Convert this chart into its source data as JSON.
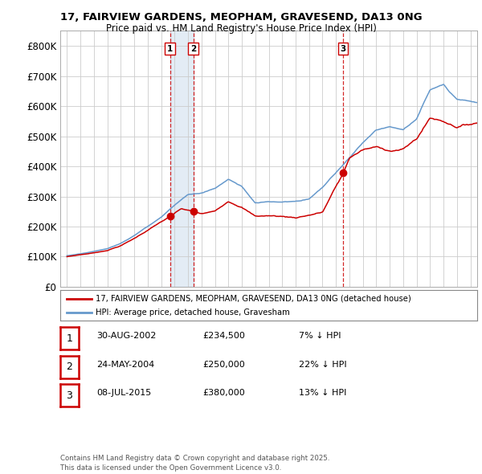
{
  "title_line1": "17, FAIRVIEW GARDENS, MEOPHAM, GRAVESEND, DA13 0NG",
  "title_line2": "Price paid vs. HM Land Registry's House Price Index (HPI)",
  "ylabel_ticks": [
    "£0",
    "£100K",
    "£200K",
    "£300K",
    "£400K",
    "£500K",
    "£600K",
    "£700K",
    "£800K"
  ],
  "ytick_values": [
    0,
    100000,
    200000,
    300000,
    400000,
    500000,
    600000,
    700000,
    800000
  ],
  "ylim": [
    0,
    850000
  ],
  "xlim_start": 1994.5,
  "xlim_end": 2025.5,
  "sale_dates": [
    2002.664,
    2004.389,
    2015.519
  ],
  "sale_prices": [
    234500,
    250000,
    380000
  ],
  "sale_labels": [
    "1",
    "2",
    "3"
  ],
  "legend_label_red": "17, FAIRVIEW GARDENS, MEOPHAM, GRAVESEND, DA13 0NG (detached house)",
  "legend_label_blue": "HPI: Average price, detached house, Gravesham",
  "table_rows": [
    {
      "num": "1",
      "date": "30-AUG-2002",
      "price": "£234,500",
      "pct": "7% ↓ HPI"
    },
    {
      "num": "2",
      "date": "24-MAY-2004",
      "price": "£250,000",
      "pct": "22% ↓ HPI"
    },
    {
      "num": "3",
      "date": "08-JUL-2015",
      "price": "£380,000",
      "pct": "13% ↓ HPI"
    }
  ],
  "footer": "Contains HM Land Registry data © Crown copyright and database right 2025.\nThis data is licensed under the Open Government Licence v3.0.",
  "red_color": "#cc0000",
  "blue_color": "#6699cc",
  "blue_fill": "#cce0f0",
  "vline_color": "#cc0000",
  "grid_color": "#cccccc",
  "background_color": "#ffffff",
  "shade_between_sales12": true
}
